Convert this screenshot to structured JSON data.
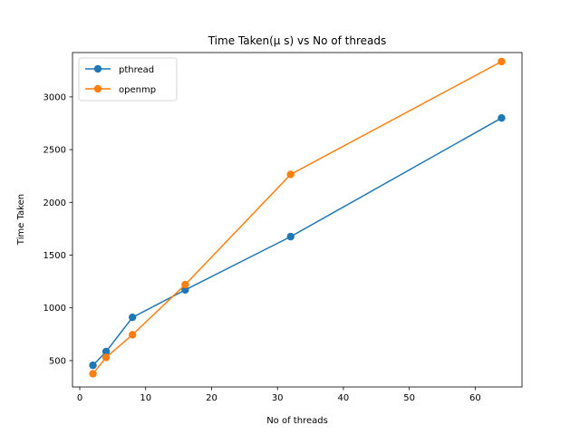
{
  "chart_data": {
    "type": "line",
    "title": "Time Taken(μ s) vs No of threads",
    "xlabel": "No of threads",
    "ylabel": "Time Taken",
    "xlim": [
      -1.1,
      67.1
    ],
    "ylim": [
      250,
      3420
    ],
    "xticks": [
      0,
      10,
      20,
      30,
      40,
      50,
      60
    ],
    "yticks": [
      500,
      1000,
      1500,
      2000,
      2500,
      3000
    ],
    "grid": false,
    "legend_position": "top-left",
    "series": [
      {
        "name": "pthread",
        "color": "#1f77b4",
        "marker": "circle",
        "x": [
          2,
          4,
          8,
          16,
          32,
          64
        ],
        "y": [
          455,
          585,
          910,
          1170,
          1675,
          2800
        ]
      },
      {
        "name": "openmp",
        "color": "#ff7f0e",
        "marker": "circle",
        "x": [
          2,
          4,
          8,
          16,
          32,
          64
        ],
        "y": [
          375,
          530,
          745,
          1220,
          2265,
          3335
        ]
      }
    ]
  }
}
